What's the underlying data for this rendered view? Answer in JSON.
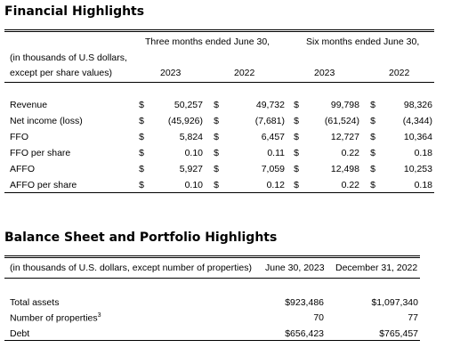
{
  "financial": {
    "title": "Financial Highlights",
    "group_three": "Three months ended June 30,",
    "group_six": "Six months ended June 30,",
    "unit_note_line1": "(in thousands of U.S dollars,",
    "unit_note_line2": "except per share values)",
    "years": [
      "2023",
      "2022",
      "2023",
      "2022"
    ],
    "rows": [
      {
        "label": "Revenue",
        "c1": "$",
        "v1": "50,257",
        "c2": "$",
        "v2": "49,732",
        "c3": "$",
        "v3": "99,798",
        "c4": "$",
        "v4": "98,326"
      },
      {
        "label": "Net income (loss)",
        "c1": "$",
        "v1": "(45,926)",
        "c2": "$",
        "v2": "(7,681)",
        "c3": "$",
        "v3": "(61,524)",
        "c4": "$",
        "v4": "(4,344)"
      },
      {
        "label": "FFO",
        "c1": "$",
        "v1": "5,824",
        "c2": "$",
        "v2": "6,457",
        "c3": "$",
        "v3": "12,727",
        "c4": "$",
        "v4": "10,364"
      },
      {
        "label": "FFO per share",
        "c1": "$",
        "v1": "0.10",
        "c2": "$",
        "v2": "0.11",
        "c3": "$",
        "v3": "0.22",
        "c4": "$",
        "v4": "0.18"
      },
      {
        "label": "AFFO",
        "c1": "$",
        "v1": "5,927",
        "c2": "$",
        "v2": "7,059",
        "c3": "$",
        "v3": "12,498",
        "c4": "$",
        "v4": "10,253"
      },
      {
        "label": "AFFO per share",
        "c1": "$",
        "v1": "0.10",
        "c2": "$",
        "v2": "0.12",
        "c3": "$",
        "v3": "0.22",
        "c4": "$",
        "v4": "0.18"
      }
    ]
  },
  "balance": {
    "title": "Balance Sheet and Portfolio Highlights",
    "unit_note": "(in thousands of U.S. dollars, except number of properties)",
    "col1": "June 30, 2023",
    "col2": "December 31, 2022",
    "rows": [
      {
        "label": "Total assets",
        "sup": "",
        "v1": "$923,486",
        "v2": "$1,097,340"
      },
      {
        "label": "Number of properties",
        "sup": "3",
        "v1": "70",
        "v2": "77"
      },
      {
        "label": "Debt",
        "sup": "",
        "v1": "$656,423",
        "v2": "$765,457"
      }
    ]
  }
}
